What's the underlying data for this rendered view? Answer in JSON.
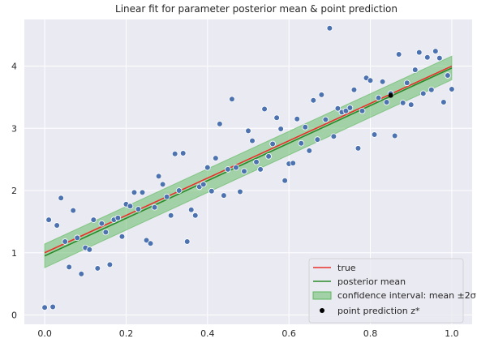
{
  "chart_data": {
    "type": "scatter",
    "title": "Linear fit for parameter posterior mean & point prediction",
    "xlabel": "",
    "ylabel": "",
    "xlim": [
      -0.05,
      1.05
    ],
    "ylim": [
      -0.15,
      4.75
    ],
    "xticks": [
      0.0,
      0.2,
      0.4,
      0.6,
      0.8,
      1.0
    ],
    "xtick_labels": [
      "0.0",
      "0.2",
      "0.4",
      "0.6",
      "0.8",
      "1.0"
    ],
    "yticks": [
      0,
      1,
      2,
      3,
      4
    ],
    "ytick_labels": [
      "0",
      "1",
      "2",
      "3",
      "4"
    ],
    "grid": true,
    "background": "#eaeaf2",
    "legend_position": "bottom-right",
    "legend": {
      "true": "true",
      "posterior_mean": "posterior mean",
      "confidence_interval": "confidence interval: mean ±2σ",
      "point_prediction": "point prediction z*"
    },
    "colors": {
      "true": "#e8312a",
      "posterior_mean": "#2a8a2a",
      "band": "#5cb85c",
      "points": "#4c72b0",
      "prediction": "#000000"
    },
    "true_line": {
      "x": [
        0.0,
        1.0
      ],
      "y": [
        1.0,
        4.0
      ]
    },
    "posterior_mean": {
      "x": [
        0.0,
        1.0
      ],
      "y": [
        0.95,
        3.97
      ]
    },
    "confidence_interval": {
      "x": [
        0.0,
        1.0
      ],
      "lower": [
        0.76,
        3.78
      ],
      "upper": [
        1.14,
        4.16
      ]
    },
    "point_prediction": {
      "x": 0.85,
      "y": 3.53
    },
    "observations": {
      "x": [
        0.0,
        0.01,
        0.02,
        0.03,
        0.04,
        0.05,
        0.06,
        0.07,
        0.08,
        0.09,
        0.1,
        0.11,
        0.12,
        0.13,
        0.14,
        0.15,
        0.16,
        0.17,
        0.18,
        0.19,
        0.2,
        0.21,
        0.22,
        0.23,
        0.24,
        0.25,
        0.26,
        0.27,
        0.28,
        0.29,
        0.3,
        0.31,
        0.32,
        0.33,
        0.34,
        0.35,
        0.36,
        0.37,
        0.38,
        0.39,
        0.4,
        0.41,
        0.42,
        0.43,
        0.44,
        0.45,
        0.46,
        0.47,
        0.48,
        0.49,
        0.5,
        0.51,
        0.52,
        0.53,
        0.54,
        0.55,
        0.56,
        0.57,
        0.58,
        0.59,
        0.6,
        0.61,
        0.62,
        0.63,
        0.64,
        0.65,
        0.66,
        0.67,
        0.68,
        0.69,
        0.7,
        0.71,
        0.72,
        0.73,
        0.74,
        0.75,
        0.76,
        0.77,
        0.78,
        0.79,
        0.8,
        0.81,
        0.82,
        0.83,
        0.84,
        0.85,
        0.86,
        0.87,
        0.88,
        0.89,
        0.9,
        0.91,
        0.92,
        0.93,
        0.94,
        0.95,
        0.96,
        0.97,
        0.98,
        0.99,
        1.0
      ],
      "y": [
        0.12,
        1.53,
        0.13,
        1.44,
        1.88,
        1.18,
        0.77,
        1.68,
        1.24,
        0.66,
        1.08,
        1.05,
        1.53,
        0.75,
        1.47,
        1.33,
        0.81,
        1.53,
        1.56,
        1.26,
        1.78,
        1.75,
        1.97,
        1.7,
        1.97,
        1.2,
        1.15,
        1.73,
        2.23,
        2.1,
        1.9,
        1.6,
        2.59,
        2.0,
        2.6,
        1.18,
        1.69,
        1.6,
        2.06,
        2.1,
        2.37,
        1.99,
        2.52,
        3.07,
        1.92,
        2.34,
        3.47,
        2.37,
        1.98,
        2.31,
        2.96,
        2.8,
        2.46,
        2.34,
        3.31,
        2.55,
        2.75,
        3.17,
        2.99,
        2.16,
        2.43,
        2.44,
        3.15,
        2.76,
        3.02,
        2.64,
        3.45,
        2.82,
        3.54,
        3.14,
        4.61,
        2.87,
        3.32,
        3.26,
        3.28,
        3.33,
        3.62,
        2.68,
        3.28,
        3.81,
        3.77,
        2.9,
        3.49,
        3.75,
        3.42,
        3.56,
        2.88,
        4.19,
        3.41,
        3.73,
        3.38,
        3.94,
        4.22,
        3.56,
        4.14,
        3.62,
        4.24,
        4.13,
        3.42,
        3.85,
        3.63
      ]
    }
  }
}
